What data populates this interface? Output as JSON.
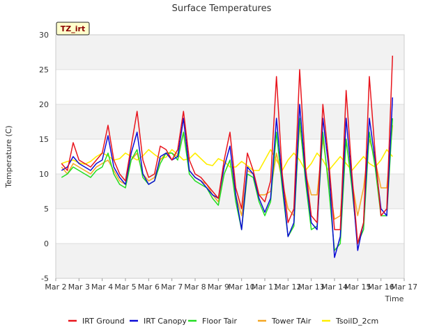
{
  "chart_data": {
    "type": "line",
    "title": "Surface Temperatures",
    "xlabel": "Time",
    "ylabel": "Temperature (C)",
    "badge": "TZ_irt",
    "ylim": [
      -5,
      30
    ],
    "yticks": [
      -5,
      0,
      5,
      10,
      15,
      20,
      25,
      30
    ],
    "xlim": [
      0,
      15
    ],
    "xtick_labels": [
      "Mar 2",
      "Mar 3",
      "Mar 4",
      "Mar 5",
      "Mar 6",
      "Mar 7",
      "Mar 8",
      "Mar 9",
      "Mar 10",
      "Mar 11",
      "Mar 12",
      "Mar 13",
      "Mar 14",
      "Mar 15",
      "Mar 16",
      "Mar 17"
    ],
    "grid": "horizontal bands",
    "legend_position": "bottom",
    "x": [
      0.25,
      0.5,
      0.75,
      1.0,
      1.25,
      1.5,
      1.75,
      2.0,
      2.25,
      2.5,
      2.75,
      3.0,
      3.25,
      3.5,
      3.75,
      4.0,
      4.25,
      4.5,
      4.75,
      5.0,
      5.25,
      5.5,
      5.75,
      6.0,
      6.25,
      6.5,
      6.75,
      7.0,
      7.25,
      7.5,
      7.75,
      8.0,
      8.25,
      8.5,
      8.75,
      9.0,
      9.25,
      9.5,
      9.75,
      10.0,
      10.25,
      10.5,
      10.75,
      11.0,
      11.25,
      11.5,
      11.75,
      12.0,
      12.25,
      12.5,
      12.75,
      13.0,
      13.25,
      13.5,
      13.75,
      14.0,
      14.25,
      14.5
    ],
    "series": [
      {
        "name": "IRT Ground",
        "color": "#e8141c",
        "values": [
          11.5,
          10.5,
          14.5,
          12,
          11.5,
          11,
          12,
          13,
          17,
          12,
          10,
          9,
          14,
          19,
          12,
          9.5,
          10,
          14,
          13.5,
          12,
          13.5,
          19,
          12,
          10,
          9.5,
          8.5,
          7.5,
          6.5,
          12,
          16,
          8,
          5,
          13,
          10.5,
          7,
          6,
          9,
          24,
          10,
          3,
          5,
          25,
          11,
          4,
          3,
          20,
          12,
          2,
          2,
          22,
          10,
          0,
          3,
          24,
          13,
          4,
          5,
          27
        ]
      },
      {
        "name": "IRT Canopy",
        "color": "#0b0bd6",
        "values": [
          10.5,
          11,
          12.5,
          11.5,
          11,
          10.5,
          11.5,
          12,
          15.5,
          11,
          9.5,
          8.5,
          13,
          16,
          10,
          8.5,
          9,
          12.5,
          13,
          12,
          12.5,
          18,
          10.5,
          9.5,
          9,
          8,
          7,
          6.5,
          11,
          14,
          7,
          2,
          11,
          10,
          6.5,
          4.5,
          6.5,
          18,
          9,
          1,
          3,
          20,
          10,
          3,
          2,
          18,
          11,
          -2,
          1,
          18,
          9,
          -1,
          3,
          18,
          12,
          5,
          4,
          21
        ]
      },
      {
        "name": "Floor Tair",
        "color": "#22dd22",
        "values": [
          9.5,
          10,
          11,
          10.5,
          10,
          9.5,
          10.5,
          11,
          13,
          10,
          8.5,
          8,
          12,
          13.5,
          9.5,
          8.5,
          9,
          11.5,
          13,
          13,
          12,
          16,
          10,
          9,
          8.5,
          8,
          6.5,
          5.5,
          10,
          12,
          6,
          2,
          10,
          9.5,
          6,
          4,
          6,
          16,
          8,
          1,
          2.5,
          18,
          9,
          2,
          2.5,
          16,
          8,
          -1,
          0,
          15,
          8,
          0,
          2,
          16,
          11,
          4,
          4,
          18
        ]
      },
      {
        "name": "Tower TAir",
        "color": "#f5a623",
        "values": [
          11,
          10,
          11.5,
          11,
          10.5,
          10,
          11,
          11.5,
          12,
          10.5,
          9,
          8.5,
          12,
          13,
          10,
          9,
          9.5,
          12,
          13,
          13,
          12.5,
          16,
          10.5,
          9.5,
          9,
          8.5,
          7,
          6,
          10,
          12,
          7,
          4,
          10.5,
          10,
          7,
          7,
          7.5,
          13,
          9,
          5,
          4,
          17,
          10,
          7,
          7,
          15,
          9,
          3.5,
          4,
          15,
          9,
          4,
          8,
          15,
          12,
          8,
          8,
          17
        ]
      },
      {
        "name": "TsoilD_2cm",
        "color": "#ffee00",
        "values": [
          11.5,
          11.8,
          12,
          11.6,
          11.4,
          11.8,
          12.5,
          13,
          12.6,
          12,
          12.2,
          13,
          12.5,
          12,
          12.6,
          13.5,
          12.8,
          12.2,
          12.4,
          13.5,
          12.8,
          12,
          12.2,
          13,
          12.2,
          11.4,
          11.2,
          12.2,
          11.8,
          11,
          11,
          11.8,
          11.2,
          10.5,
          10.5,
          12,
          13.5,
          12,
          10.5,
          12,
          13,
          12,
          10.5,
          11.5,
          13,
          12,
          10.5,
          11.5,
          12.5,
          11.5,
          10.5,
          11.5,
          12.5,
          11.5,
          11,
          12,
          13.5,
          12.5
        ]
      }
    ]
  }
}
